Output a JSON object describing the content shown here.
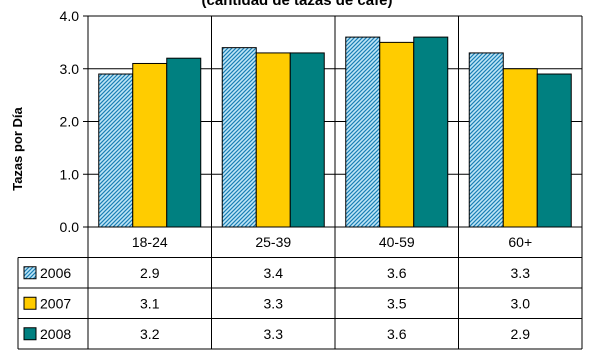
{
  "chart_data": {
    "type": "bar",
    "title": "(cantidad de tazas de café)",
    "xlabel": "",
    "ylabel": "Tazas por Día",
    "ylim": [
      0,
      4
    ],
    "yticks": [
      "0.0",
      "1.0",
      "2.0",
      "3.0",
      "4.0"
    ],
    "categories": [
      "18-24",
      "25-39",
      "40-59",
      "60+"
    ],
    "series": [
      {
        "name": "2006",
        "values": [
          2.9,
          3.4,
          3.6,
          3.3
        ],
        "labels": [
          "2.9",
          "3.4",
          "3.6",
          "3.3"
        ],
        "color": "#4fb3d9",
        "pattern": "hatch"
      },
      {
        "name": "2007",
        "values": [
          3.1,
          3.3,
          3.5,
          3.0
        ],
        "labels": [
          "3.1",
          "3.3",
          "3.5",
          "3.0"
        ],
        "color": "#ffcc00",
        "pattern": "solid"
      },
      {
        "name": "2008",
        "values": [
          3.2,
          3.3,
          3.6,
          2.9
        ],
        "labels": [
          "3.2",
          "3.3",
          "3.6",
          "2.9"
        ],
        "color": "#008080",
        "pattern": "solid"
      }
    ],
    "grid": true,
    "legend": "data-table"
  }
}
